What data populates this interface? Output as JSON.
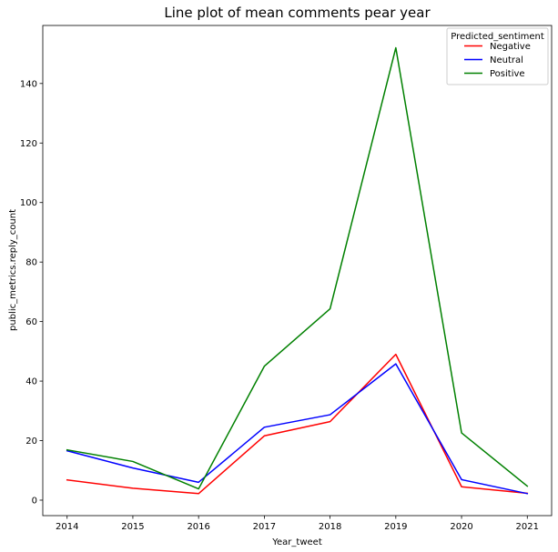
{
  "chart_data": {
    "type": "line",
    "title": "Line plot of mean comments pear year",
    "xlabel": "Year_tweet",
    "ylabel": "public_metrics.reply_count",
    "x": [
      2014,
      2015,
      2016,
      2017,
      2018,
      2019,
      2020,
      2021
    ],
    "x_ticks": [
      "2014",
      "2015",
      "2016",
      "2017",
      "2018",
      "2019",
      "2020",
      "2021"
    ],
    "y_ticks": [
      "0",
      "20",
      "40",
      "60",
      "80",
      "100",
      "120",
      "140"
    ],
    "xlim": [
      2013.63,
      2021.37
    ],
    "ylim": [
      -5.2,
      159.5
    ],
    "grid": false,
    "legend": {
      "title": "Predicted_sentiment",
      "placement": "top-right"
    },
    "series": [
      {
        "name": "Negative",
        "color": "#ff0000",
        "values": [
          6.8,
          4.0,
          2.2,
          21.6,
          26.4,
          49.0,
          4.5,
          2.3
        ]
      },
      {
        "name": "Neutral",
        "color": "#0000ff",
        "values": [
          16.6,
          10.8,
          6.0,
          24.5,
          28.7,
          45.8,
          6.9,
          2.2
        ]
      },
      {
        "name": "Positive",
        "color": "#008000",
        "values": [
          16.9,
          13.0,
          3.8,
          45.0,
          64.3,
          152.0,
          22.6,
          4.7
        ]
      }
    ]
  }
}
